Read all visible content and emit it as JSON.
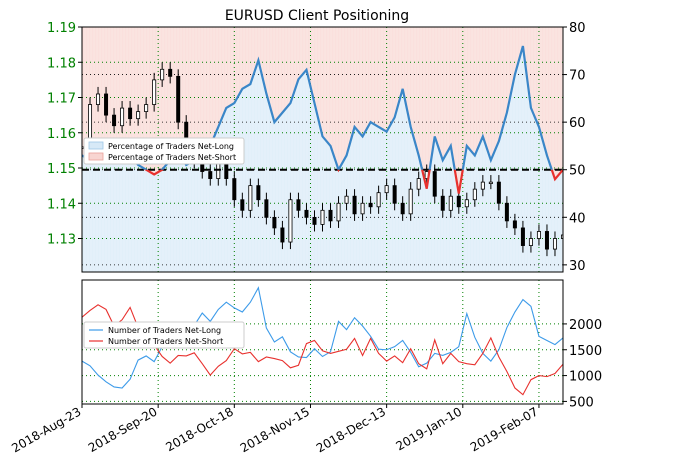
{
  "chart_data": {
    "type": "line",
    "title": "EURUSD Client Positioning",
    "x_tick_labels": [
      "2018-Aug-23",
      "2018-Sep-20",
      "2018-Oct-18",
      "2018-Nov-15",
      "2018-Dec-13",
      "2019-Jan-10",
      "2019-Feb-07"
    ],
    "top_panel": {
      "left_axis": {
        "label": "",
        "ylim": [
          1.1205,
          1.19
        ],
        "ticks": [
          1.13,
          1.14,
          1.15,
          1.16,
          1.17,
          1.18,
          1.19
        ],
        "tick_labels": [
          "1.13",
          "1.14",
          "1.15",
          "1.16",
          "1.17",
          "1.18",
          "1.19"
        ],
        "color": "#008000"
      },
      "right_axis": {
        "label": "",
        "ylim": [
          28.5,
          80
        ],
        "ticks": [
          30,
          40,
          50,
          60,
          70,
          80
        ],
        "tick_labels": [
          "30",
          "40",
          "50",
          "60",
          "70",
          "80"
        ]
      },
      "reference_line": 50,
      "legend": {
        "placement": "upper-left",
        "entries": [
          "Percentage of Traders Net-Long",
          "Percentage of Traders Net-Short"
        ]
      },
      "series": [
        {
          "name": "Percentage of Traders Net-Long",
          "color": "#3a86c8",
          "x": [
            0,
            3,
            6,
            9,
            12,
            15,
            18,
            21,
            24,
            27,
            30,
            33,
            36,
            39,
            42,
            45,
            48,
            51,
            54,
            57,
            60,
            63,
            66,
            69,
            72,
            75,
            78,
            81,
            84,
            87,
            90,
            93,
            96,
            99,
            102,
            105,
            108,
            111,
            114,
            117,
            120,
            123,
            126,
            129,
            132,
            135,
            138,
            141,
            144,
            147,
            150,
            153,
            156,
            159,
            162,
            165,
            168,
            171,
            174,
            177,
            180
          ],
          "y": [
            53,
            52,
            53,
            54,
            55,
            54,
            53,
            51,
            50,
            49,
            50,
            52,
            54,
            51,
            52,
            53,
            55,
            59,
            63,
            64,
            67,
            68,
            73,
            66,
            60,
            62,
            64,
            69,
            71,
            64,
            57,
            55,
            50,
            53,
            59,
            57,
            60,
            59,
            58,
            61,
            67,
            59,
            53,
            46,
            57,
            52,
            55,
            45,
            55,
            53,
            57,
            52,
            56,
            62,
            70,
            76,
            63,
            59,
            53,
            48,
            50
          ]
        },
        {
          "name": "Percentage of Traders Net-Short",
          "color": "#e8312e",
          "x": [
            0,
            3,
            6,
            9,
            12,
            15,
            18,
            21,
            24,
            27,
            30,
            33,
            36,
            39,
            42,
            45,
            48,
            51,
            54,
            57,
            60,
            63,
            66,
            69,
            72,
            75,
            78,
            81,
            84,
            87,
            90,
            93,
            96,
            99,
            102,
            105,
            108,
            111,
            114,
            117,
            120,
            123,
            126,
            129,
            132,
            135,
            138,
            141,
            144,
            147,
            150,
            153,
            156,
            159,
            162,
            165,
            168,
            171,
            174,
            177,
            180
          ],
          "y": [
            47,
            48,
            47,
            46,
            45,
            46,
            47,
            49,
            50,
            51,
            50,
            48,
            46,
            49,
            48,
            47,
            45,
            41,
            37,
            36,
            33,
            32,
            27,
            34,
            40,
            38,
            36,
            31,
            29,
            36,
            43,
            45,
            50,
            47,
            41,
            43,
            40,
            41,
            42,
            39,
            33,
            41,
            47,
            54,
            43,
            48,
            45,
            55,
            45,
            47,
            43,
            48,
            44,
            38,
            30,
            24,
            37,
            41,
            47,
            52,
            50
          ]
        }
      ]
    },
    "bottom_panel": {
      "left_axis": {
        "label": "",
        "ylim": [
          500,
          2700
        ],
        "ticks": [],
        "tick_labels": []
      },
      "right_axis": {
        "label": "",
        "ylim": [
          450,
          2850
        ],
        "ticks": [
          500,
          1000,
          1500,
          2000
        ],
        "tick_labels": [
          "500",
          "1000",
          "1500",
          "2000"
        ]
      },
      "legend": {
        "placement": "center-left",
        "entries": [
          "Number of Traders Net-Long",
          "Number of Traders Net-Short"
        ]
      },
      "series": [
        {
          "name": "Number of Traders Net-Long",
          "color": "#3d9be9",
          "x": [
            0,
            3,
            6,
            9,
            12,
            15,
            18,
            21,
            24,
            27,
            30,
            33,
            36,
            39,
            42,
            45,
            48,
            51,
            54,
            57,
            60,
            63,
            66,
            69,
            72,
            75,
            78,
            81,
            84,
            87,
            90,
            93,
            96,
            99,
            102,
            105,
            108,
            111,
            114,
            117,
            120,
            123,
            126,
            129,
            132,
            135,
            138,
            141,
            144,
            147,
            150,
            153,
            156,
            159,
            162,
            165,
            168,
            171,
            174,
            177,
            180
          ],
          "y": [
            1280,
            1190,
            1010,
            880,
            780,
            760,
            930,
            1300,
            1380,
            1270,
            1560,
            1790,
            1830,
            1740,
            1970,
            2210,
            2050,
            2280,
            2420,
            2310,
            2230,
            2420,
            2700,
            1920,
            1650,
            1750,
            1460,
            1360,
            1350,
            1520,
            1370,
            1460,
            2050,
            1890,
            2120,
            1960,
            1760,
            1510,
            1500,
            1560,
            1680,
            1450,
            1170,
            1240,
            1430,
            1390,
            1450,
            1560,
            2200,
            1740,
            1430,
            1280,
            1500,
            1930,
            2230,
            2470,
            2340,
            1760,
            1680,
            1600,
            1730
          ]
        },
        {
          "name": "Number of Traders Net-Short",
          "color": "#e8312e",
          "x": [
            0,
            3,
            6,
            9,
            12,
            15,
            18,
            21,
            24,
            27,
            30,
            33,
            36,
            39,
            42,
            45,
            48,
            51,
            54,
            57,
            60,
            63,
            66,
            69,
            72,
            75,
            78,
            81,
            84,
            87,
            90,
            93,
            96,
            99,
            102,
            105,
            108,
            111,
            114,
            117,
            120,
            123,
            126,
            129,
            132,
            135,
            138,
            141,
            144,
            147,
            150,
            153,
            156,
            159,
            162,
            165,
            168,
            171,
            174,
            177,
            180
          ],
          "y": [
            2130,
            2260,
            2370,
            2280,
            1960,
            2080,
            2320,
            1930,
            1860,
            1590,
            1370,
            1240,
            1390,
            1380,
            1440,
            1230,
            1010,
            1180,
            1290,
            1520,
            1420,
            1450,
            1270,
            1360,
            1330,
            1290,
            1150,
            1200,
            1620,
            1680,
            1480,
            1430,
            1470,
            1510,
            1720,
            1390,
            1720,
            1430,
            1280,
            1380,
            1250,
            1520,
            1230,
            1130,
            1690,
            1230,
            1430,
            1270,
            1230,
            1210,
            1430,
            1730,
            1360,
            1080,
            760,
            630,
            920,
            1000,
            980,
            1040,
            1220
          ]
        }
      ]
    },
    "price_series": {
      "name": "EURUSD",
      "color": "#000000",
      "x": [
        0,
        3,
        6,
        9,
        12,
        15,
        18,
        21,
        24,
        27,
        30,
        33,
        36,
        39,
        42,
        45,
        48,
        51,
        54,
        57,
        60,
        63,
        66,
        69,
        72,
        75,
        78,
        81,
        84,
        87,
        90,
        93,
        96,
        99,
        102,
        105,
        108,
        111,
        114,
        117,
        120,
        123,
        126,
        129,
        132,
        135,
        138,
        141,
        144,
        147,
        150,
        153,
        156,
        159,
        162,
        165,
        168,
        171,
        174,
        177,
        180
      ],
      "y": [
        1.156,
        1.168,
        1.171,
        1.165,
        1.162,
        1.167,
        1.164,
        1.166,
        1.168,
        1.175,
        1.178,
        1.176,
        1.163,
        1.156,
        1.152,
        1.149,
        1.147,
        1.152,
        1.147,
        1.141,
        1.138,
        1.145,
        1.141,
        1.136,
        1.133,
        1.129,
        1.141,
        1.138,
        1.136,
        1.134,
        1.138,
        1.135,
        1.14,
        1.142,
        1.137,
        1.14,
        1.139,
        1.143,
        1.145,
        1.14,
        1.137,
        1.144,
        1.147,
        1.149,
        1.142,
        1.138,
        1.142,
        1.139,
        1.141,
        1.144,
        1.146,
        1.146,
        1.14,
        1.135,
        1.133,
        1.128,
        1.13,
        1.132,
        1.127,
        1.13,
        1.131
      ]
    },
    "colors": {
      "net_long_fill": "#d7e9f7",
      "net_short_fill": "#f8d5d1",
      "grid": "#008000",
      "axes": "#000000"
    }
  }
}
